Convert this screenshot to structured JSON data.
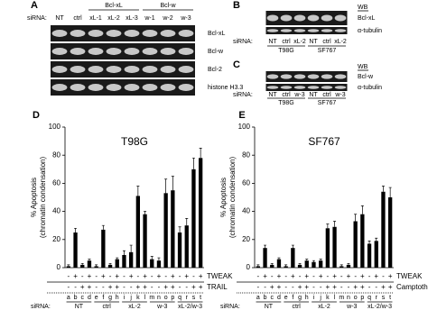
{
  "gels": [
    {
      "label": "A",
      "siRNA_label": "siRNA:",
      "lanes": [
        "NT",
        "ctrl",
        "xL-1",
        "xL-2",
        "xL-3",
        "w-1",
        "w-2",
        "w-3"
      ],
      "groups": [
        "Bcl-xL",
        "Bcl-w"
      ],
      "rows": [
        "Bcl-xL",
        "Bcl-w",
        "Bcl-2",
        "histone H3.3"
      ]
    },
    {
      "label": "B",
      "siRNA_label": "siRNA:",
      "lanes": [
        "NT",
        "ctrl",
        "xL-2",
        "NT",
        "ctrl",
        "xL-2"
      ],
      "cells": [
        "T98G",
        "SF767"
      ],
      "wb": "WB",
      "rows": [
        "Bcl-xL",
        "α-tubulin"
      ]
    },
    {
      "label": "C",
      "siRNA_label": "siRNA:",
      "lanes": [
        "NT",
        "ctrl",
        "w-3",
        "NT",
        "ctrl",
        "w-3"
      ],
      "cells": [
        "T98G",
        "SF767"
      ],
      "wb": "WB",
      "rows": [
        "Bcl-w",
        "α-tubulin"
      ]
    }
  ],
  "chart_data": [
    {
      "type": "bar",
      "panel": "D",
      "title": "T98G",
      "y_label": [
        "% Apoptosis",
        "(chromatin condensation)"
      ],
      "categories": [
        "a",
        "b",
        "c",
        "d",
        "e",
        "f",
        "g",
        "h",
        "i",
        "j",
        "k",
        "l",
        "m",
        "n",
        "o",
        "p",
        "q",
        "r",
        "s",
        "t"
      ],
      "values": [
        1,
        25,
        2,
        5,
        1,
        27,
        2,
        6,
        9,
        11,
        51,
        38,
        6,
        5,
        53,
        55,
        25,
        30,
        70,
        78
      ],
      "errors": [
        1,
        3,
        1,
        1,
        1,
        3,
        1,
        1,
        3,
        5,
        7,
        2,
        2,
        2,
        10,
        10,
        4,
        5,
        8,
        7
      ],
      "color": "#000000",
      "ylim": [
        0,
        100
      ],
      "yticks": [
        0,
        20,
        40,
        60,
        80,
        100
      ],
      "treatments": [
        {
          "name": "TWEAK",
          "signs": [
            "-",
            "+",
            "-",
            "+",
            "-",
            "+",
            "-",
            "+",
            "-",
            "+",
            "-",
            "+",
            "-",
            "+",
            "-",
            "+",
            "-",
            "+",
            "-",
            "+"
          ]
        },
        {
          "name": "TRAIL",
          "signs": [
            "-",
            "-",
            "+",
            "+",
            "-",
            "-",
            "+",
            "+",
            "-",
            "-",
            "+",
            "+",
            "-",
            "-",
            "+",
            "+",
            "-",
            "-",
            "+",
            "+"
          ]
        }
      ],
      "siRNA_label": "siRNA:",
      "groups": [
        "NT",
        "ctrl",
        "xL-2",
        "w-3",
        "xL-2/w-3"
      ]
    },
    {
      "type": "bar",
      "panel": "E",
      "title": "SF767",
      "y_label": [
        "% Apoptosis",
        "(chromatin condensation)"
      ],
      "categories": [
        "a",
        "b",
        "c",
        "d",
        "e",
        "f",
        "g",
        "h",
        "i",
        "j",
        "k",
        "l",
        "m",
        "n",
        "o",
        "p",
        "q",
        "r",
        "s",
        "t"
      ],
      "values": [
        1,
        14,
        2,
        6,
        1,
        14,
        2,
        5,
        4,
        5,
        28,
        29,
        1,
        2,
        33,
        38,
        17,
        19,
        54,
        50
      ],
      "errors": [
        1,
        2,
        1,
        1,
        1,
        2,
        1,
        1,
        1,
        1,
        3,
        4,
        1,
        1,
        5,
        6,
        2,
        2,
        4,
        7
      ],
      "color": "#000000",
      "ylim": [
        0,
        100
      ],
      "yticks": [
        0,
        20,
        40,
        60,
        80,
        100
      ],
      "treatments": [
        {
          "name": "TWEAK",
          "signs": [
            "-",
            "+",
            "-",
            "+",
            "-",
            "+",
            "-",
            "+",
            "-",
            "+",
            "-",
            "+",
            "-",
            "+",
            "-",
            "+",
            "-",
            "+",
            "-",
            "+"
          ]
        },
        {
          "name": "Camptothecin",
          "signs": [
            "-",
            "-",
            "+",
            "+",
            "-",
            "-",
            "+",
            "+",
            "-",
            "-",
            "+",
            "+",
            "-",
            "-",
            "+",
            "+",
            "-",
            "-",
            "+",
            "+"
          ]
        }
      ],
      "siRNA_label": "siRNA:",
      "groups": [
        "NT",
        "ctrl",
        "xL-2",
        "w-3",
        "xL-2/w-3"
      ]
    }
  ]
}
